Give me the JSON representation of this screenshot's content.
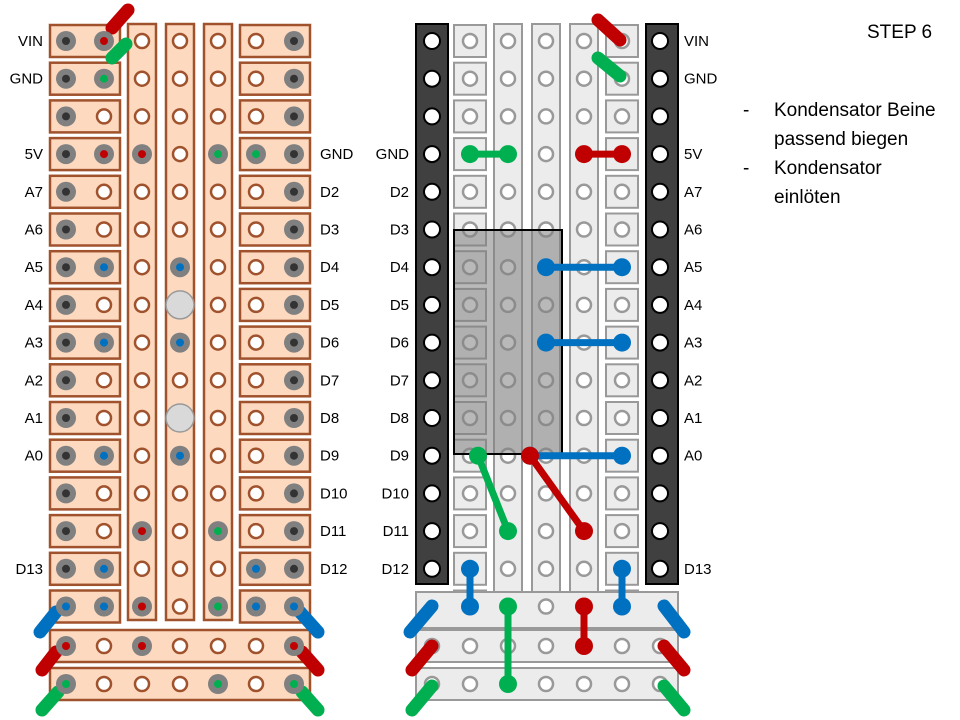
{
  "step_title": "STEP 6",
  "instructions": [
    "Kondensator Beine passend biegen",
    "Kondensator einlöten"
  ],
  "left_board": {
    "left_labels": [
      "VIN",
      "GND",
      "",
      "5V",
      "A7",
      "A6",
      "A5",
      "A4",
      "A3",
      "A2",
      "A1",
      "A0",
      "",
      "",
      "D13"
    ],
    "right_labels": [
      "",
      "",
      "",
      "GND",
      "D2",
      "D3",
      "D4",
      "D5",
      "D6",
      "D7",
      "D8",
      "D9",
      "D10",
      "D11",
      "D12"
    ]
  },
  "right_board": {
    "left_labels": [
      "",
      "",
      "",
      "GND",
      "D2",
      "D3",
      "D4",
      "D5",
      "D6",
      "D7",
      "D8",
      "D9",
      "D10",
      "D11",
      "D12"
    ],
    "right_labels": [
      "VIN",
      "GND",
      "",
      "5V",
      "A7",
      "A6",
      "A5",
      "A4",
      "A3",
      "A2",
      "A1",
      "A0",
      "",
      "",
      "D13"
    ]
  },
  "colors": {
    "copper": "#fdd9bf",
    "copper_border": "#a0522d",
    "header": "#404040",
    "wire_red": "#c00000",
    "wire_green": "#00b050",
    "wire_blue": "#0070c0",
    "wire_darkblue": "#1f5f9f",
    "grey_strip": "#ececec"
  }
}
